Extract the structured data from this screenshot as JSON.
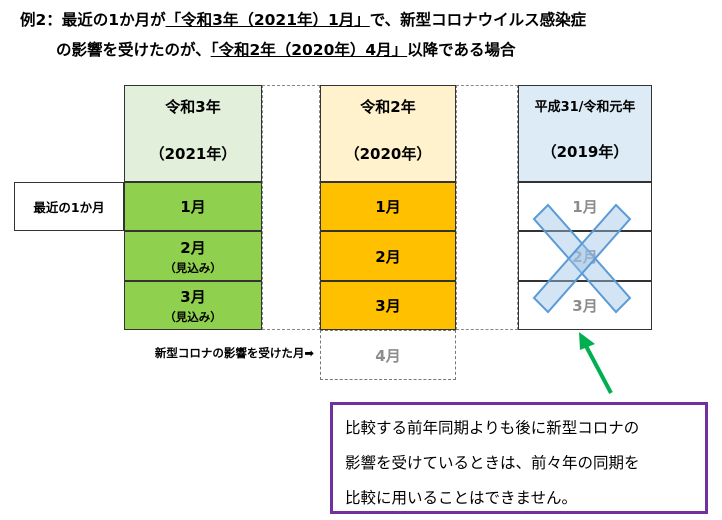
{
  "title": {
    "line1_prefix": "例2：最近の1か月が",
    "line1_highlight": "「令和3年（2021年）1月」",
    "line1_suffix": "で、新型コロナウイルス感染症",
    "line2_prefix": "の影響を受けたのが、",
    "line2_highlight": "「令和2年（2020年）4月」",
    "line2_suffix": "以降である場合"
  },
  "columns": [
    {
      "era": "令和3年",
      "year": "（2021年）",
      "color": "#e2efda"
    },
    {
      "era": "令和2年",
      "year": "（2020年）",
      "color": "#fff2cc"
    },
    {
      "era": "平成31/令和元年",
      "year": "（2019年）",
      "color": "#ddebf7"
    }
  ],
  "row_label": "最近の1か月",
  "col2021": [
    {
      "month": "1月",
      "note": ""
    },
    {
      "month": "2月",
      "note": "（見込み）"
    },
    {
      "month": "3月",
      "note": "（見込み）"
    }
  ],
  "col2020": [
    "1月",
    "2月",
    "3月",
    "4月"
  ],
  "col2019": [
    "1月",
    "2月",
    "3月"
  ],
  "affected_label": "新型コロナの影響を受けた月➡",
  "callout": {
    "line1": "比較する前年同期よりも後に新型コロナの",
    "line2": "影響を受けているときは、前々年の同期を",
    "line3": "比較に用いることはできません。"
  },
  "colors": {
    "green": "#8fd14f",
    "orange": "#ffc000",
    "cross": "#9dc3e6",
    "arrow": "#00b050",
    "callout_border": "#7030a0"
  }
}
